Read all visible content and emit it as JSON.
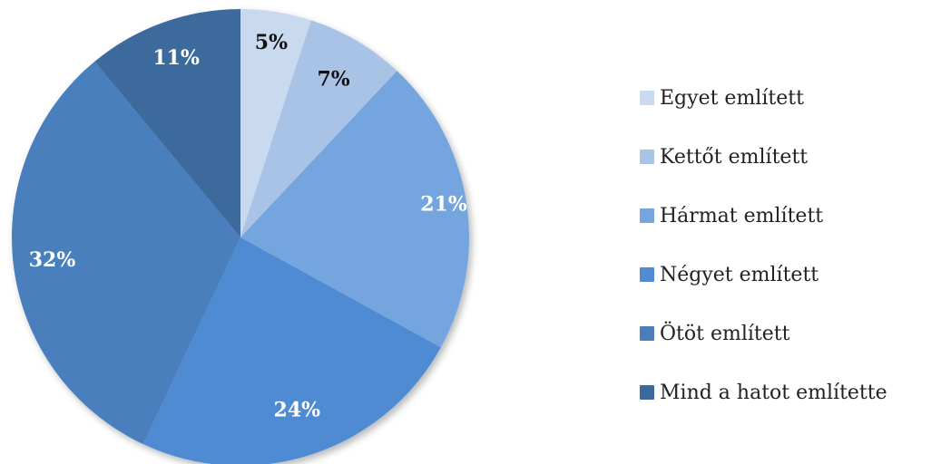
{
  "chart_data": {
    "type": "pie",
    "title": "",
    "slices": [
      {
        "label": "Egyet említett",
        "value": 5,
        "display": "5%",
        "color": "#c9d9ef",
        "label_color": "#111111"
      },
      {
        "label": "Kettőt említett",
        "value": 7,
        "display": "7%",
        "color": "#a9c3e6",
        "label_color": "#111111"
      },
      {
        "label": "Hármat említett",
        "value": 21,
        "display": "21%",
        "color": "#75a5de",
        "label_color": "#ffffff"
      },
      {
        "label": "Négyet említett",
        "value": 24,
        "display": "24%",
        "color": "#4f8bd3",
        "label_color": "#ffffff"
      },
      {
        "label": "Ötöt említett",
        "value": 32,
        "display": "32%",
        "color": "#4a7fbd",
        "label_color": "#ffffff"
      },
      {
        "label": "Mind a hatot említette",
        "value": 11,
        "display": "11%",
        "color": "#3c6a9c",
        "label_color": "#ffffff"
      }
    ],
    "legend_position": "right"
  }
}
